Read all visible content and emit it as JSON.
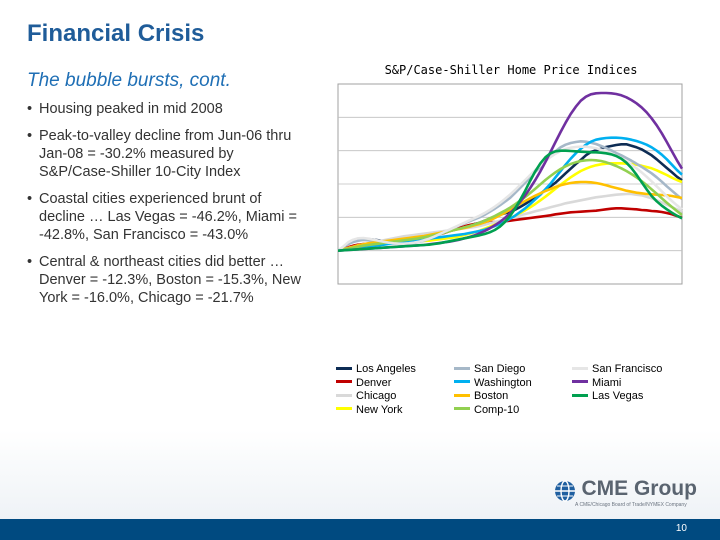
{
  "title": "Financial Crisis",
  "subtitle": "The bubble bursts, cont.",
  "bullets": [
    "Housing peaked in mid 2008",
    "Peak-to-valley decline from Jun-06 thru Jan-08 = -30.2% measured by S&P/Case-Shiller 10-City Index",
    "Coastal cities experienced brunt of decline … Las Vegas = -46.2%, Miami = -42.8%, San Francisco = -43.0%",
    "Central & northeast cities did better … Denver = -12.3%, Boston = -15.3%, New York = -16.0%, Chicago = -21.7%"
  ],
  "bullet_char": "•",
  "chart_data": {
    "type": "line",
    "title": "S&P/Case-Shiller Home Price Indices",
    "xlabel": "",
    "ylabel": "",
    "grid": "horizontal",
    "legend_position": "bottom",
    "x": [
      0,
      1,
      2,
      3,
      4,
      5,
      6,
      7,
      8,
      9,
      10,
      11,
      12,
      13,
      14,
      15,
      16,
      17,
      18,
      19,
      20,
      21,
      22,
      23,
      24,
      25,
      26,
      27,
      28,
      29,
      30,
      31,
      32,
      33,
      34,
      35,
      36,
      37,
      38,
      39,
      40,
      41,
      42,
      43,
      44,
      45,
      46,
      47,
      48,
      49,
      50,
      51,
      52,
      53,
      54,
      55,
      56,
      57,
      58,
      59,
      60,
      61,
      62,
      63,
      64,
      65,
      66,
      67,
      68
    ],
    "ylim": [
      0,
      6
    ],
    "series": [
      {
        "name": "Los Angeles",
        "color": "#0d2c54",
        "values": [
          1.0,
          1.1,
          1.22,
          1.28,
          1.33,
          1.35,
          1.35,
          1.33,
          1.31,
          1.28,
          1.26,
          1.24,
          1.24,
          1.25,
          1.27,
          1.3,
          1.33,
          1.37,
          1.42,
          1.46,
          1.51,
          1.55,
          1.59,
          1.63,
          1.68,
          1.72,
          1.76,
          1.8,
          1.84,
          1.9,
          1.96,
          2.02,
          2.08,
          2.12,
          2.16,
          2.23,
          2.31,
          2.4,
          2.5,
          2.61,
          2.71,
          2.82,
          2.93,
          3.04,
          3.18,
          3.32,
          3.46,
          3.6,
          3.72,
          3.86,
          3.96,
          4.01,
          4.06,
          4.11,
          4.14,
          4.17,
          4.19,
          4.19,
          4.15,
          4.1,
          4.04,
          3.95,
          3.86,
          3.74,
          3.61,
          3.48,
          3.35,
          3.22,
          3.11
        ]
      },
      {
        "name": "Denver",
        "color": "#c00000",
        "values": [
          1.0,
          1.05,
          1.1,
          1.15,
          1.18,
          1.2,
          1.21,
          1.22,
          1.23,
          1.24,
          1.25,
          1.27,
          1.3,
          1.32,
          1.34,
          1.36,
          1.38,
          1.4,
          1.42,
          1.45,
          1.49,
          1.53,
          1.58,
          1.63,
          1.68,
          1.73,
          1.77,
          1.8,
          1.82,
          1.84,
          1.85,
          1.86,
          1.87,
          1.88,
          1.9,
          1.92,
          1.94,
          1.96,
          1.98,
          2.0,
          2.02,
          2.04,
          2.06,
          2.09,
          2.11,
          2.13,
          2.15,
          2.16,
          2.17,
          2.18,
          2.19,
          2.2,
          2.22,
          2.24,
          2.26,
          2.27,
          2.27,
          2.26,
          2.25,
          2.24,
          2.22,
          2.21,
          2.19,
          2.18,
          2.16,
          2.13,
          2.09,
          2.04,
          1.99
        ]
      },
      {
        "name": "Chicago",
        "color": "#d9d9d9",
        "values": [
          1.0,
          1.04,
          1.08,
          1.12,
          1.16,
          1.19,
          1.22,
          1.25,
          1.28,
          1.31,
          1.34,
          1.37,
          1.4,
          1.43,
          1.45,
          1.47,
          1.49,
          1.51,
          1.53,
          1.55,
          1.57,
          1.59,
          1.61,
          1.63,
          1.65,
          1.67,
          1.69,
          1.71,
          1.74,
          1.78,
          1.82,
          1.86,
          1.9,
          1.94,
          1.98,
          2.02,
          2.06,
          2.1,
          2.14,
          2.18,
          2.22,
          2.26,
          2.3,
          2.34,
          2.38,
          2.42,
          2.45,
          2.48,
          2.51,
          2.54,
          2.57,
          2.6,
          2.62,
          2.64,
          2.66,
          2.68,
          2.69,
          2.7,
          2.7,
          2.68,
          2.66,
          2.62,
          2.57,
          2.51,
          2.45,
          2.38,
          2.31,
          2.24,
          2.17
        ]
      },
      {
        "name": "New York",
        "color": "#ffff00",
        "values": [
          1.0,
          1.03,
          1.06,
          1.09,
          1.12,
          1.15,
          1.17,
          1.19,
          1.2,
          1.21,
          1.22,
          1.23,
          1.24,
          1.25,
          1.26,
          1.27,
          1.28,
          1.29,
          1.3,
          1.32,
          1.34,
          1.36,
          1.38,
          1.4,
          1.43,
          1.47,
          1.51,
          1.55,
          1.6,
          1.66,
          1.72,
          1.78,
          1.84,
          1.91,
          1.98,
          2.05,
          2.13,
          2.21,
          2.3,
          2.4,
          2.51,
          2.62,
          2.74,
          2.86,
          2.98,
          3.09,
          3.2,
          3.3,
          3.39,
          3.46,
          3.52,
          3.56,
          3.59,
          3.61,
          3.62,
          3.62,
          3.62,
          3.61,
          3.6,
          3.58,
          3.55,
          3.51,
          3.47,
          3.41,
          3.34,
          3.27,
          3.19,
          3.12,
          3.06
        ]
      },
      {
        "name": "San Diego",
        "color": "#a6b8c8",
        "values": [
          1.0,
          1.1,
          1.2,
          1.26,
          1.3,
          1.32,
          1.31,
          1.29,
          1.27,
          1.25,
          1.23,
          1.21,
          1.2,
          1.2,
          1.21,
          1.23,
          1.26,
          1.3,
          1.35,
          1.41,
          1.48,
          1.55,
          1.62,
          1.69,
          1.76,
          1.82,
          1.88,
          1.94,
          2.0,
          2.08,
          2.17,
          2.26,
          2.36,
          2.47,
          2.58,
          2.73,
          2.88,
          3.04,
          3.2,
          3.36,
          3.52,
          3.68,
          3.84,
          3.98,
          4.1,
          4.18,
          4.23,
          4.26,
          4.28,
          4.27,
          4.24,
          4.2,
          4.14,
          4.08,
          4.01,
          3.93,
          3.86,
          3.78,
          3.7,
          3.61,
          3.52,
          3.42,
          3.32,
          3.2,
          3.07,
          2.93,
          2.8,
          2.67,
          2.55
        ]
      },
      {
        "name": "Washington",
        "color": "#00b0f0",
        "values": [
          1.0,
          1.02,
          1.04,
          1.06,
          1.08,
          1.1,
          1.12,
          1.14,
          1.16,
          1.18,
          1.2,
          1.22,
          1.24,
          1.26,
          1.28,
          1.3,
          1.32,
          1.34,
          1.36,
          1.38,
          1.4,
          1.42,
          1.44,
          1.46,
          1.48,
          1.5,
          1.53,
          1.56,
          1.59,
          1.63,
          1.68,
          1.74,
          1.8,
          1.87,
          1.96,
          2.05,
          2.16,
          2.27,
          2.4,
          2.54,
          2.68,
          2.84,
          3.01,
          3.2,
          3.39,
          3.58,
          3.76,
          3.92,
          4.06,
          4.18,
          4.27,
          4.33,
          4.36,
          4.38,
          4.39,
          4.39,
          4.38,
          4.36,
          4.33,
          4.29,
          4.24,
          4.18,
          4.1,
          4.0,
          3.88,
          3.74,
          3.58,
          3.42,
          3.28
        ]
      },
      {
        "name": "Boston",
        "color": "#ffc000",
        "values": [
          1.0,
          1.04,
          1.08,
          1.12,
          1.16,
          1.19,
          1.22,
          1.24,
          1.26,
          1.28,
          1.3,
          1.32,
          1.34,
          1.36,
          1.38,
          1.4,
          1.42,
          1.44,
          1.47,
          1.5,
          1.53,
          1.56,
          1.59,
          1.62,
          1.65,
          1.68,
          1.72,
          1.76,
          1.8,
          1.85,
          1.91,
          1.98,
          2.06,
          2.14,
          2.23,
          2.32,
          2.41,
          2.49,
          2.57,
          2.65,
          2.72,
          2.79,
          2.85,
          2.91,
          2.96,
          3.0,
          3.03,
          3.05,
          3.06,
          3.06,
          3.05,
          3.03,
          3.0,
          2.96,
          2.92,
          2.88,
          2.84,
          2.8,
          2.77,
          2.74,
          2.72,
          2.7,
          2.69,
          2.68,
          2.67,
          2.66,
          2.64,
          2.61,
          2.58
        ]
      },
      {
        "name": "Comp-10",
        "color": "#92d050",
        "values": [
          1.0,
          1.03,
          1.06,
          1.09,
          1.12,
          1.15,
          1.17,
          1.19,
          1.21,
          1.23,
          1.25,
          1.27,
          1.29,
          1.31,
          1.33,
          1.35,
          1.37,
          1.4,
          1.43,
          1.46,
          1.5,
          1.54,
          1.58,
          1.62,
          1.66,
          1.7,
          1.74,
          1.79,
          1.84,
          1.9,
          1.97,
          2.04,
          2.12,
          2.2,
          2.29,
          2.39,
          2.5,
          2.61,
          2.73,
          2.86,
          2.99,
          3.12,
          3.24,
          3.35,
          3.45,
          3.53,
          3.6,
          3.65,
          3.69,
          3.71,
          3.72,
          3.71,
          3.69,
          3.65,
          3.6,
          3.54,
          3.47,
          3.39,
          3.3,
          3.2,
          3.09,
          2.97,
          2.84,
          2.71,
          2.57,
          2.44,
          2.31,
          2.19,
          2.07
        ]
      },
      {
        "name": "San Francisco",
        "color": "#e6e6e6",
        "values": [
          1.0,
          1.12,
          1.25,
          1.33,
          1.37,
          1.38,
          1.36,
          1.33,
          1.3,
          1.27,
          1.24,
          1.22,
          1.21,
          1.21,
          1.22,
          1.24,
          1.27,
          1.31,
          1.36,
          1.42,
          1.49,
          1.56,
          1.63,
          1.7,
          1.77,
          1.84,
          1.91,
          1.98,
          2.05,
          2.13,
          2.22,
          2.32,
          2.43,
          2.55,
          2.68,
          2.82,
          2.97,
          3.12,
          3.27,
          3.42,
          3.56,
          3.69,
          3.81,
          3.91,
          3.99,
          4.05,
          4.09,
          4.11,
          4.12,
          4.12,
          4.1,
          4.07,
          4.03,
          3.98,
          3.92,
          3.85,
          3.77,
          3.68,
          3.58,
          3.47,
          3.35,
          3.22,
          3.08,
          2.93,
          2.78,
          2.63,
          2.49,
          2.36,
          2.24
        ]
      },
      {
        "name": "Miami",
        "color": "#7030a0",
        "values": [
          1.0,
          1.01,
          1.02,
          1.03,
          1.04,
          1.05,
          1.06,
          1.07,
          1.08,
          1.09,
          1.1,
          1.11,
          1.12,
          1.13,
          1.14,
          1.15,
          1.16,
          1.17,
          1.19,
          1.21,
          1.23,
          1.25,
          1.27,
          1.3,
          1.33,
          1.37,
          1.41,
          1.46,
          1.52,
          1.59,
          1.67,
          1.76,
          1.86,
          1.98,
          2.12,
          2.28,
          2.46,
          2.66,
          2.88,
          3.12,
          3.38,
          3.66,
          3.96,
          4.26,
          4.56,
          4.84,
          5.1,
          5.32,
          5.5,
          5.62,
          5.69,
          5.72,
          5.73,
          5.73,
          5.72,
          5.7,
          5.66,
          5.6,
          5.52,
          5.42,
          5.3,
          5.15,
          4.97,
          4.76,
          4.52,
          4.26,
          3.98,
          3.71,
          3.46
        ]
      },
      {
        "name": "Las Vegas",
        "color": "#00a050",
        "values": [
          1.0,
          1.01,
          1.02,
          1.03,
          1.04,
          1.05,
          1.06,
          1.07,
          1.08,
          1.09,
          1.1,
          1.11,
          1.12,
          1.13,
          1.14,
          1.15,
          1.16,
          1.17,
          1.18,
          1.2,
          1.22,
          1.25,
          1.28,
          1.31,
          1.34,
          1.37,
          1.4,
          1.43,
          1.46,
          1.5,
          1.55,
          1.62,
          1.72,
          1.86,
          2.04,
          2.26,
          2.52,
          2.8,
          3.1,
          3.38,
          3.62,
          3.8,
          3.92,
          3.98,
          4.0,
          4.0,
          3.99,
          3.98,
          3.97,
          3.96,
          3.95,
          3.95,
          3.94,
          3.92,
          3.89,
          3.84,
          3.76,
          3.64,
          3.48,
          3.28,
          3.06,
          2.84,
          2.64,
          2.48,
          2.35,
          2.24,
          2.14,
          2.05,
          1.97
        ]
      }
    ]
  },
  "legend_columns": [
    [
      "Los Angeles",
      "Denver",
      "Chicago",
      "New York"
    ],
    [
      "San Diego",
      "Washington",
      "Boston",
      "Comp-10"
    ],
    [
      "San Francisco",
      "Miami",
      "Las Vegas"
    ]
  ],
  "logo": {
    "brand": "CME Group",
    "tagline": "A CME/Chicago Board of Trade/NYMEX Company"
  },
  "page_number": "10"
}
